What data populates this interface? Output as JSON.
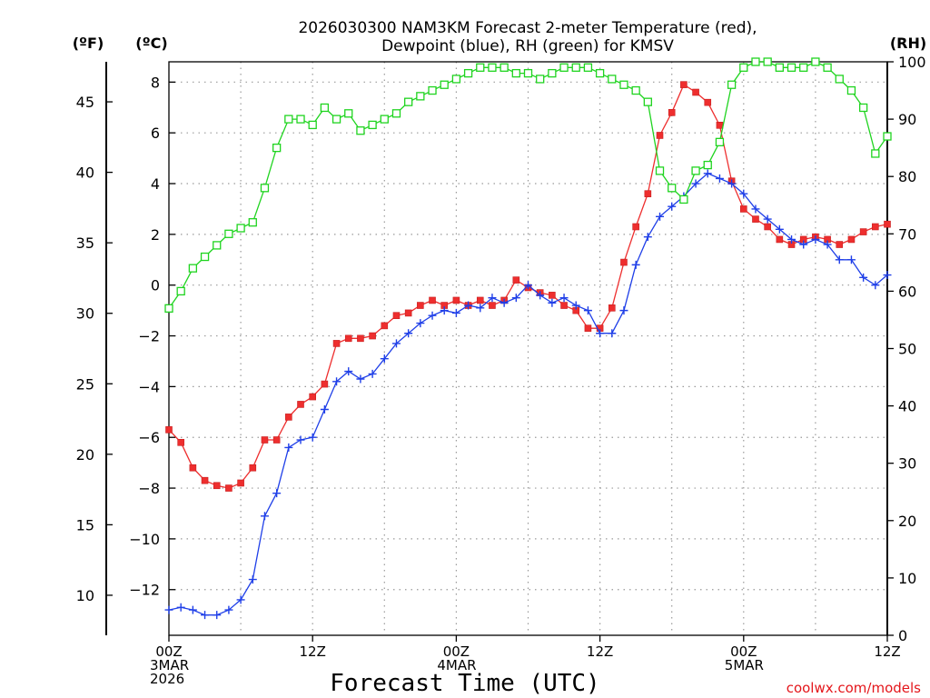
{
  "chart_data": {
    "type": "line",
    "title_line1": "2026030300 NAM3KM Forecast 2-meter Temperature (red),",
    "title_line2": "Dewpoint (blue), RH (green) for KMSV",
    "left_unit_f": "(ºF)",
    "left_unit_c": "(ºC)",
    "right_unit": "(RH)",
    "xlabel": "Forecast Time (UTC)",
    "credit": "coolwx.com/models",
    "x_range_hours": [
      0,
      60
    ],
    "celsius_range": [
      -13.8,
      8.8
    ],
    "fahrenheit_range": [
      7.16,
      47.84
    ],
    "rh_range": [
      0,
      100
    ],
    "celsius_ticks": [
      8,
      6,
      4,
      2,
      0,
      -2,
      -4,
      -6,
      -8,
      -10,
      -12
    ],
    "celsius_tick_labels": [
      "8",
      "6",
      "4",
      "2",
      "0",
      "−2",
      "−4",
      "−6",
      "−8",
      "−10",
      "−12"
    ],
    "fahrenheit_ticks": [
      45,
      40,
      35,
      30,
      25,
      20,
      15,
      10
    ],
    "fahrenheit_tick_labels": [
      "45",
      "40",
      "35",
      "30",
      "25",
      "20",
      "15",
      "10"
    ],
    "rh_ticks": [
      100,
      90,
      80,
      70,
      60,
      50,
      40,
      30,
      20,
      10,
      0
    ],
    "rh_tick_labels": [
      "100",
      "90",
      "80",
      "70",
      "60",
      "50",
      "40",
      "30",
      "20",
      "10",
      "0"
    ],
    "x_ticks": [
      {
        "hour": 0,
        "lines": [
          "00Z",
          "3MAR",
          "2026"
        ]
      },
      {
        "hour": 12,
        "lines": [
          "12Z"
        ]
      },
      {
        "hour": 24,
        "lines": [
          "00Z",
          "4MAR"
        ]
      },
      {
        "hour": 36,
        "lines": [
          "12Z"
        ]
      },
      {
        "hour": 48,
        "lines": [
          "00Z",
          "5MAR"
        ]
      },
      {
        "hour": 60,
        "lines": [
          "12Z"
        ]
      }
    ],
    "grid": "dotted",
    "series": [
      {
        "name": "Temperature",
        "units": "degC",
        "color": "#ee2e2e",
        "marker": "square-filled",
        "x": [
          0,
          1,
          2,
          3,
          4,
          5,
          6,
          7,
          8,
          9,
          10,
          11,
          12,
          13,
          14,
          15,
          16,
          17,
          18,
          19,
          20,
          21,
          22,
          23,
          24,
          25,
          26,
          27,
          28,
          29,
          30,
          31,
          32,
          33,
          34,
          35,
          36,
          37,
          38,
          39,
          40,
          41,
          42,
          43,
          44,
          45,
          46,
          47,
          48,
          49,
          50,
          51,
          52,
          53,
          54,
          55,
          56,
          57,
          58,
          59,
          60
        ],
        "values": [
          -5.7,
          -6.2,
          -7.2,
          -7.7,
          -7.9,
          -8.0,
          -7.8,
          -7.2,
          -6.1,
          -6.1,
          -5.2,
          -4.7,
          -4.4,
          -3.9,
          -2.3,
          -2.1,
          -2.1,
          -2.0,
          -1.6,
          -1.2,
          -1.1,
          -0.8,
          -0.6,
          -0.8,
          -0.6,
          -0.8,
          -0.6,
          -0.8,
          -0.6,
          0.2,
          -0.1,
          -0.3,
          -0.4,
          -0.8,
          -1.0,
          -1.7,
          -1.7,
          -0.9,
          0.9,
          2.3,
          3.6,
          5.9,
          6.8,
          7.9,
          7.6,
          7.2,
          6.3,
          4.1,
          3.0,
          2.6,
          2.3,
          1.8,
          1.6,
          1.8,
          1.9,
          1.8,
          1.6,
          1.8,
          2.1,
          2.3,
          2.4
        ]
      },
      {
        "name": "Dewpoint",
        "units": "degC",
        "color": "#1f3fe8",
        "marker": "plus",
        "x": [
          0,
          1,
          2,
          3,
          4,
          5,
          6,
          7,
          8,
          9,
          10,
          11,
          12,
          13,
          14,
          15,
          16,
          17,
          18,
          19,
          20,
          21,
          22,
          23,
          24,
          25,
          26,
          27,
          28,
          29,
          30,
          31,
          32,
          33,
          34,
          35,
          36,
          37,
          38,
          39,
          40,
          41,
          42,
          43,
          44,
          45,
          46,
          47,
          48,
          49,
          50,
          51,
          52,
          53,
          54,
          55,
          56,
          57,
          58,
          59,
          60
        ],
        "values": [
          -12.8,
          -12.7,
          -12.8,
          -13.0,
          -13.0,
          -12.8,
          -12.4,
          -11.6,
          -9.1,
          -8.2,
          -6.4,
          -6.1,
          -6.0,
          -4.9,
          -3.8,
          -3.4,
          -3.7,
          -3.5,
          -2.9,
          -2.3,
          -1.9,
          -1.5,
          -1.2,
          -1.0,
          -1.1,
          -0.8,
          -0.9,
          -0.5,
          -0.7,
          -0.5,
          0.0,
          -0.4,
          -0.7,
          -0.5,
          -0.8,
          -1.0,
          -1.9,
          -1.9,
          -1.0,
          0.8,
          1.9,
          2.7,
          3.1,
          3.5,
          4.0,
          4.4,
          4.2,
          4.0,
          3.6,
          3.0,
          2.6,
          2.2,
          1.8,
          1.6,
          1.8,
          1.6,
          1.0,
          1.0,
          0.3,
          0.0,
          0.4
        ]
      },
      {
        "name": "RH",
        "units": "percent",
        "color": "#1fd41f",
        "marker": "square-open",
        "axis": "right",
        "x": [
          0,
          1,
          2,
          3,
          4,
          5,
          6,
          7,
          8,
          9,
          10,
          11,
          12,
          13,
          14,
          15,
          16,
          17,
          18,
          19,
          20,
          21,
          22,
          23,
          24,
          25,
          26,
          27,
          28,
          29,
          30,
          31,
          32,
          33,
          34,
          35,
          36,
          37,
          38,
          39,
          40,
          41,
          42,
          43,
          44,
          45,
          46,
          47,
          48,
          49,
          50,
          51,
          52,
          53,
          54,
          55,
          56,
          57,
          58,
          59,
          60
        ],
        "values": [
          57,
          60,
          64,
          66,
          68,
          70,
          71,
          72,
          78,
          85,
          90,
          90,
          89,
          92,
          90,
          91,
          88,
          89,
          90,
          91,
          93,
          94,
          95,
          96,
          97,
          98,
          99,
          99,
          99,
          98,
          98,
          97,
          98,
          99,
          99,
          99,
          98,
          97,
          96,
          95,
          93,
          81,
          78,
          76,
          81,
          82,
          86,
          96,
          99,
          100,
          100,
          99,
          99,
          99,
          100,
          99,
          97,
          95,
          92,
          84,
          87
        ]
      }
    ]
  }
}
